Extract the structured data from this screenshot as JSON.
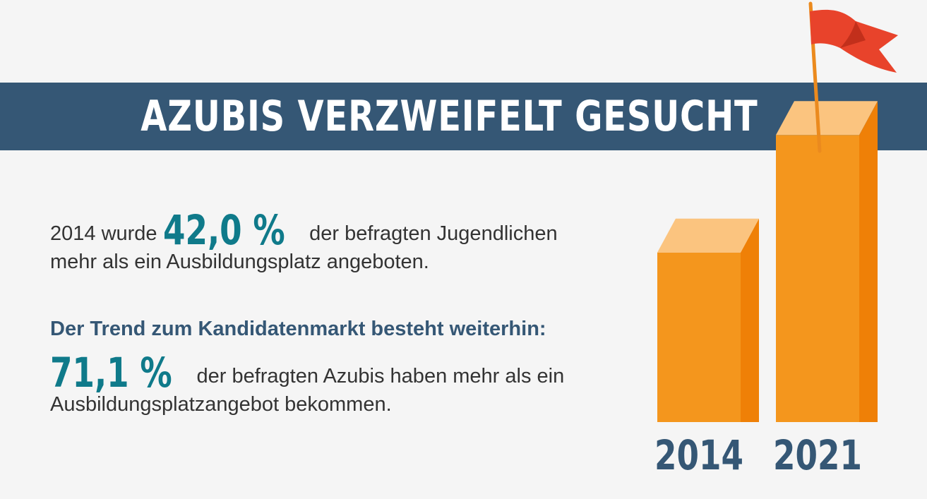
{
  "title": "AZUBIS VERZWEIFELT GESUCHT",
  "paragraph1": {
    "before": "2014 wurde",
    "value": "42,0 %",
    "after_line1": "der befragten Jugendlichen",
    "line2": "mehr als ein Ausbildungsplatz angeboten."
  },
  "trend_heading": "Der Trend zum Kandidatenmarkt besteht weiterhin:",
  "paragraph2": {
    "value": "71,1 %",
    "after_line1": "der befragten Azubis haben mehr als ein",
    "line2": "Ausbildungsplatzangebot bekommen."
  },
  "colors": {
    "banner": "#355775",
    "highlight": "#0f7a8a",
    "bar_front": "#f4961d",
    "bar_side": "#ef8007",
    "bar_top": "#fbc47f",
    "flag": "#e8432b",
    "year_labels": "#355775"
  },
  "icons": [
    "flag-icon"
  ],
  "chart_data": {
    "type": "bar",
    "categories": [
      "2014",
      "2021"
    ],
    "values": [
      42.0,
      71.1
    ],
    "title": "",
    "xlabel": "",
    "ylabel": "",
    "grid": false,
    "legend": "none"
  }
}
